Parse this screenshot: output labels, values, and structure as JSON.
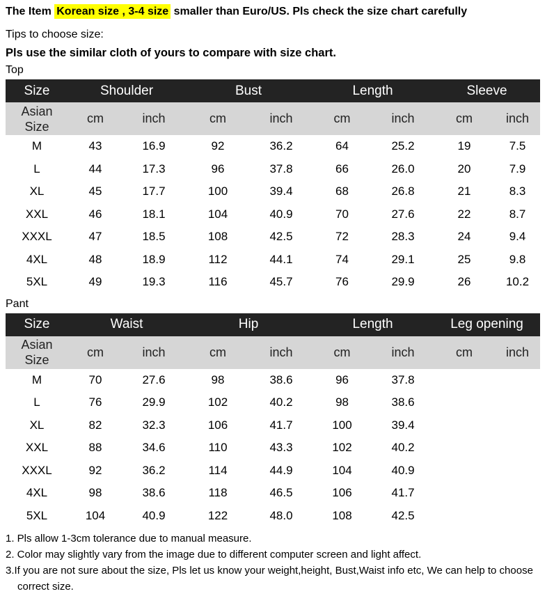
{
  "header": {
    "prefix": "The Item ",
    "highlight": "Korean size , 3-4 size",
    "suffix": " smaller than Euro/US. Pls check the size chart carefully",
    "tips": "Tips to choose size:",
    "instruction": "Pls use the similar cloth of yours to compare with size chart."
  },
  "colors": {
    "highlight_bg": "#ffff00",
    "table_header_bg": "#232323",
    "table_header_text": "#ffffff",
    "table_subheader_bg": "#d6d6d6",
    "body_text": "#000000"
  },
  "tables": [
    {
      "section_label": "Top",
      "corner_header": "Size",
      "corner_subheader": "Asian Size",
      "unit_cm": "cm",
      "unit_inch": "inch",
      "groups": [
        "Shoulder",
        "Bust",
        "Length",
        "Sleeve"
      ],
      "rows": [
        {
          "size": "M",
          "values": [
            "43",
            "16.9",
            "92",
            "36.2",
            "64",
            "25.2",
            "19",
            "7.5"
          ]
        },
        {
          "size": "L",
          "values": [
            "44",
            "17.3",
            "96",
            "37.8",
            "66",
            "26.0",
            "20",
            "7.9"
          ]
        },
        {
          "size": "XL",
          "values": [
            "45",
            "17.7",
            "100",
            "39.4",
            "68",
            "26.8",
            "21",
            "8.3"
          ]
        },
        {
          "size": "XXL",
          "values": [
            "46",
            "18.1",
            "104",
            "40.9",
            "70",
            "27.6",
            "22",
            "8.7"
          ]
        },
        {
          "size": "XXXL",
          "values": [
            "47",
            "18.5",
            "108",
            "42.5",
            "72",
            "28.3",
            "24",
            "9.4"
          ]
        },
        {
          "size": "4XL",
          "values": [
            "48",
            "18.9",
            "112",
            "44.1",
            "74",
            "29.1",
            "25",
            "9.8"
          ]
        },
        {
          "size": "5XL",
          "values": [
            "49",
            "19.3",
            "116",
            "45.7",
            "76",
            "29.9",
            "26",
            "10.2"
          ]
        }
      ]
    },
    {
      "section_label": "Pant",
      "corner_header": "Size",
      "corner_subheader": "Asian Size",
      "unit_cm": "cm",
      "unit_inch": "inch",
      "groups": [
        "Waist",
        "Hip",
        "Length",
        "Leg opening"
      ],
      "rows": [
        {
          "size": "M",
          "values": [
            "70",
            "27.6",
            "98",
            "38.6",
            "96",
            "37.8",
            "",
            ""
          ]
        },
        {
          "size": "L",
          "values": [
            "76",
            "29.9",
            "102",
            "40.2",
            "98",
            "38.6",
            "",
            ""
          ]
        },
        {
          "size": "XL",
          "values": [
            "82",
            "32.3",
            "106",
            "41.7",
            "100",
            "39.4",
            "",
            ""
          ]
        },
        {
          "size": "XXL",
          "values": [
            "88",
            "34.6",
            "110",
            "43.3",
            "102",
            "40.2",
            "",
            ""
          ]
        },
        {
          "size": "XXXL",
          "values": [
            "92",
            "36.2",
            "114",
            "44.9",
            "104",
            "40.9",
            "",
            ""
          ]
        },
        {
          "size": "4XL",
          "values": [
            "98",
            "38.6",
            "118",
            "46.5",
            "106",
            "41.7",
            "",
            ""
          ]
        },
        {
          "size": "5XL",
          "values": [
            "104",
            "40.9",
            "122",
            "48.0",
            "108",
            "42.5",
            "",
            ""
          ]
        }
      ]
    }
  ],
  "notes": [
    "1. Pls allow 1-3cm tolerance due to manual measure.",
    "2. Color may slightly vary from the image due to different computer screen and light affect.",
    "3.If you are not sure about the size, Pls let us know your weight,height, Bust,Waist info etc, We can help to choose correct size."
  ]
}
